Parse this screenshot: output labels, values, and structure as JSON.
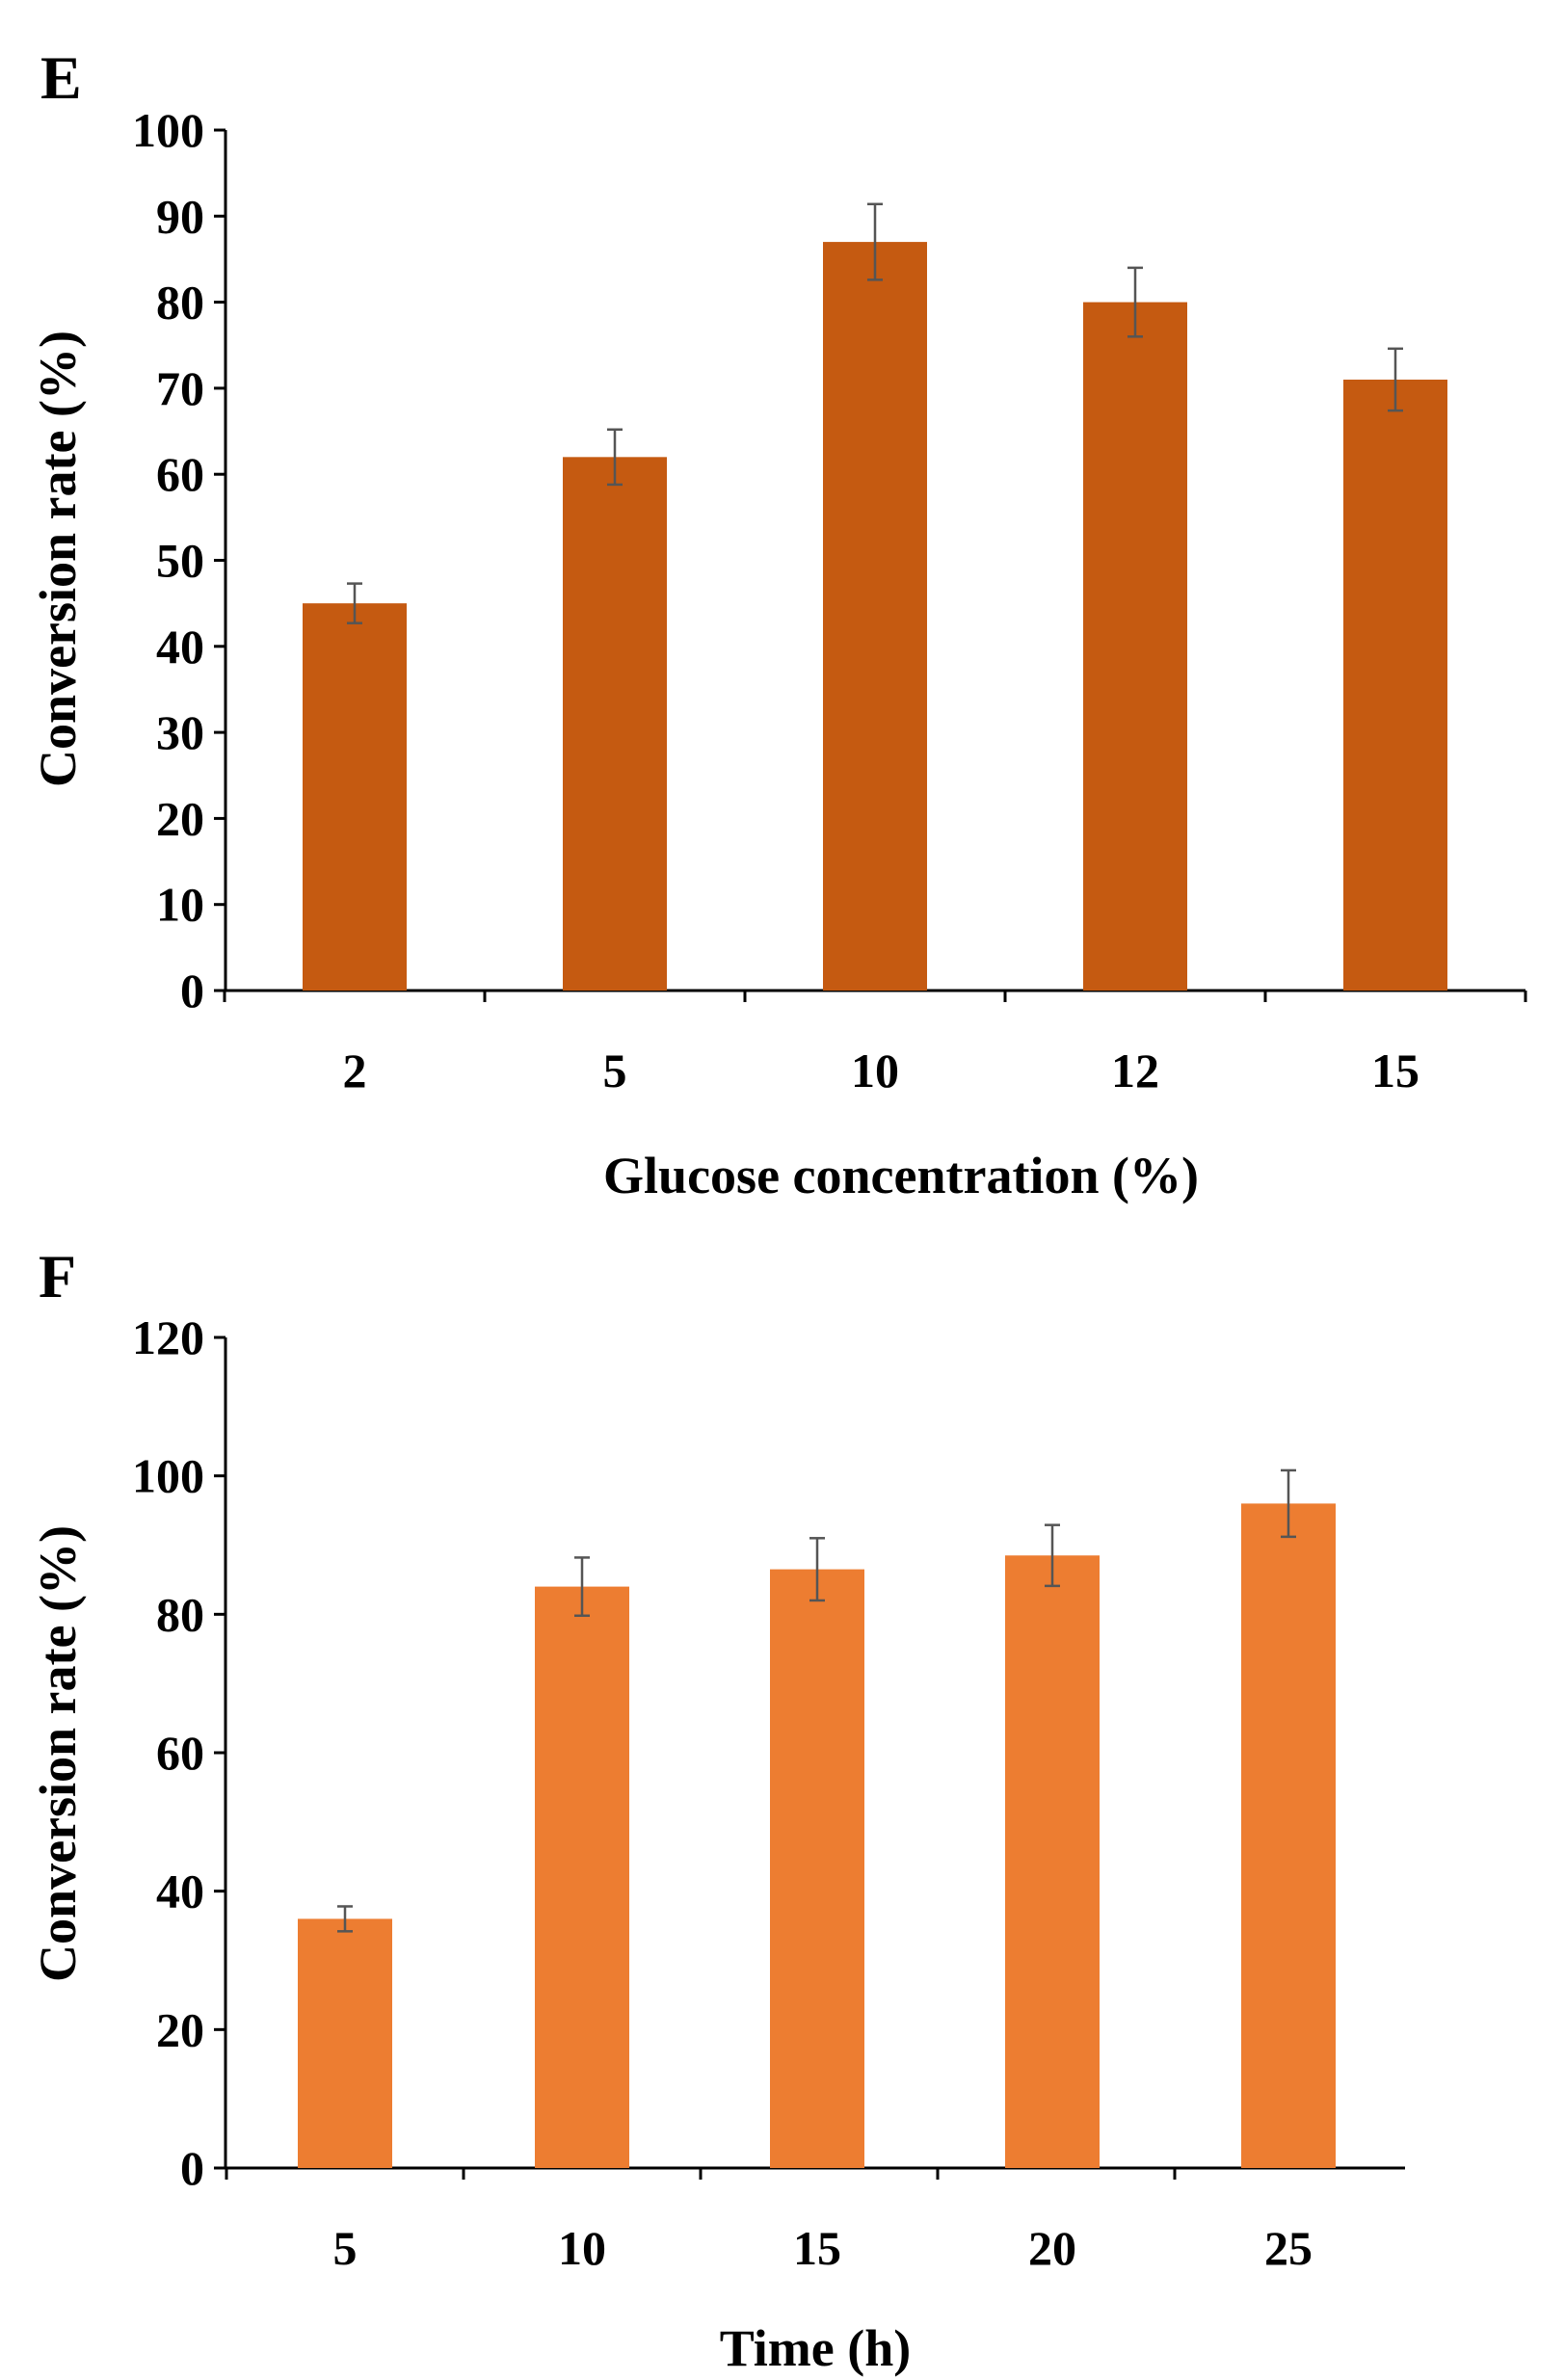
{
  "chart_data": [
    {
      "panel": "E",
      "type": "bar",
      "title": "",
      "xlabel": "Glucose concentration (%)",
      "ylabel": "Conversion rate (%)",
      "categories": [
        "2",
        "5",
        "10",
        "12",
        "15"
      ],
      "values": [
        45,
        62,
        87,
        80,
        71
      ],
      "errors": [
        2.3,
        3.2,
        4.4,
        4.0,
        3.6
      ],
      "ylim": [
        0,
        100
      ],
      "yticks": [
        0,
        10,
        20,
        30,
        40,
        50,
        60,
        70,
        80,
        90,
        100
      ],
      "bar_color": "#c55a11",
      "grid": false
    },
    {
      "panel": "F",
      "type": "bar",
      "title": "",
      "xlabel": "Time (h)",
      "ylabel": "Conversion rate (%)",
      "categories": [
        "5",
        "10",
        "15",
        "20",
        "25"
      ],
      "values": [
        36,
        84,
        86.5,
        88.5,
        96
      ],
      "errors": [
        1.8,
        4.2,
        4.5,
        4.4,
        4.8
      ],
      "ylim": [
        0,
        120
      ],
      "yticks": [
        0,
        20,
        40,
        60,
        80,
        100,
        120
      ],
      "bar_color": "#ed7d31",
      "grid": false
    }
  ]
}
